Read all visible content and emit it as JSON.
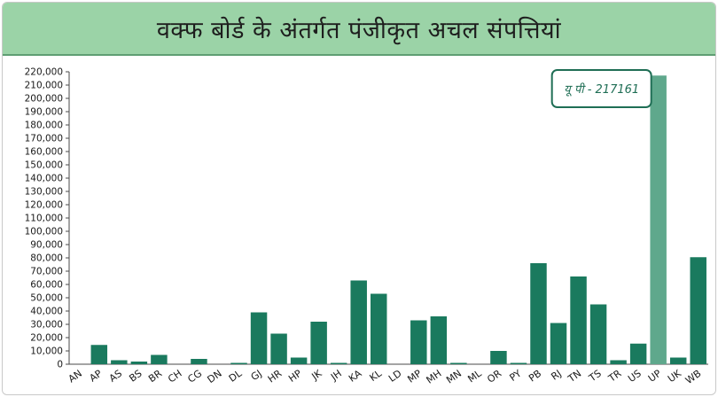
{
  "chart_data": {
    "type": "bar",
    "title": "वक्फ बोर्ड के अंतर्गत पंजीकृत अचल संपत्तियां",
    "ylim": [
      0,
      220000
    ],
    "ytick_step": 10000,
    "ytick_labels": [
      "0",
      "10,000",
      "20,000",
      "30,000",
      "40,000",
      "50,000",
      "60,000",
      "70,000",
      "80,000",
      "90,000",
      "100,000",
      "110,000",
      "120,000",
      "130,000",
      "140,000",
      "150,000",
      "160,000",
      "170,000",
      "180,000",
      "190,000",
      "200,000",
      "210,000",
      "220,000"
    ],
    "categories": [
      "AN",
      "AP",
      "AS",
      "BS",
      "BR",
      "CH",
      "CG",
      "DN",
      "DL",
      "GJ",
      "HR",
      "HP",
      "JK",
      "JH",
      "KA",
      "KL",
      "LD",
      "MP",
      "MH",
      "MN",
      "ML",
      "OR",
      "PY",
      "PB",
      "RJ",
      "TN",
      "TS",
      "TR",
      "US",
      "UP",
      "UK",
      "WB"
    ],
    "values": [
      0,
      14500,
      3000,
      2000,
      7000,
      0,
      4000,
      0,
      1000,
      39000,
      23000,
      5000,
      32000,
      1000,
      63000,
      53000,
      0,
      33000,
      36000,
      1000,
      0,
      10000,
      1000,
      76000,
      31000,
      66000,
      45000,
      3000,
      15500,
      217161,
      5000,
      80500
    ],
    "highlight": "UP",
    "annotation": "यू पी - 217161",
    "grid": false,
    "colors": {
      "bar": "#1a7a5e",
      "highlight": "#5fa88c",
      "axis": "#4a4a4a",
      "title_bg": "#9bd3a7"
    }
  }
}
